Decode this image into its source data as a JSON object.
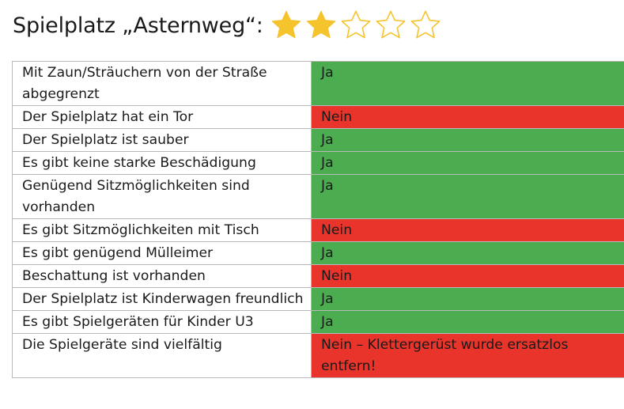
{
  "header": {
    "title": "Spielplatz „Asternweg“:",
    "rating": 2,
    "rating_max": 5,
    "star_filled_color": "#f5c32c",
    "star_empty_color": "#f5c32c",
    "star_icon": "star-icon"
  },
  "colors": {
    "yes": "#4cac50",
    "no": "#e8342a"
  },
  "rows": [
    {
      "question": "Mit Zaun/Sträuchern von der Straße abgegrenzt",
      "answer": "Ja",
      "status": "yes"
    },
    {
      "question": "Der Spielplatz hat ein Tor",
      "answer": "Nein",
      "status": "no"
    },
    {
      "question": "Der Spielplatz ist sauber",
      "answer": "Ja",
      "status": "yes"
    },
    {
      "question": "Es gibt keine starke Beschädigung",
      "answer": "Ja",
      "status": "yes"
    },
    {
      "question": "Genügend Sitzmöglichkeiten sind vorhanden",
      "answer": "Ja",
      "status": "yes"
    },
    {
      "question": "Es gibt Sitzmöglichkeiten mit Tisch",
      "answer": "Nein",
      "status": "no"
    },
    {
      "question": "Es gibt genügend Mülleimer",
      "answer": "Ja",
      "status": "yes"
    },
    {
      "question": "Beschattung ist vorhanden",
      "answer": "Nein",
      "status": "no"
    },
    {
      "question": "Der Spielplatz ist Kinderwagen freundlich",
      "answer": "Ja",
      "status": "yes"
    },
    {
      "question": "Es gibt Spielgeräten für Kinder U3",
      "answer": "Ja",
      "status": "yes"
    },
    {
      "question": "Die Spielgeräte sind vielfältig",
      "answer": "Nein – Klettergerüst wurde ersatzlos entfern!",
      "status": "no"
    }
  ]
}
